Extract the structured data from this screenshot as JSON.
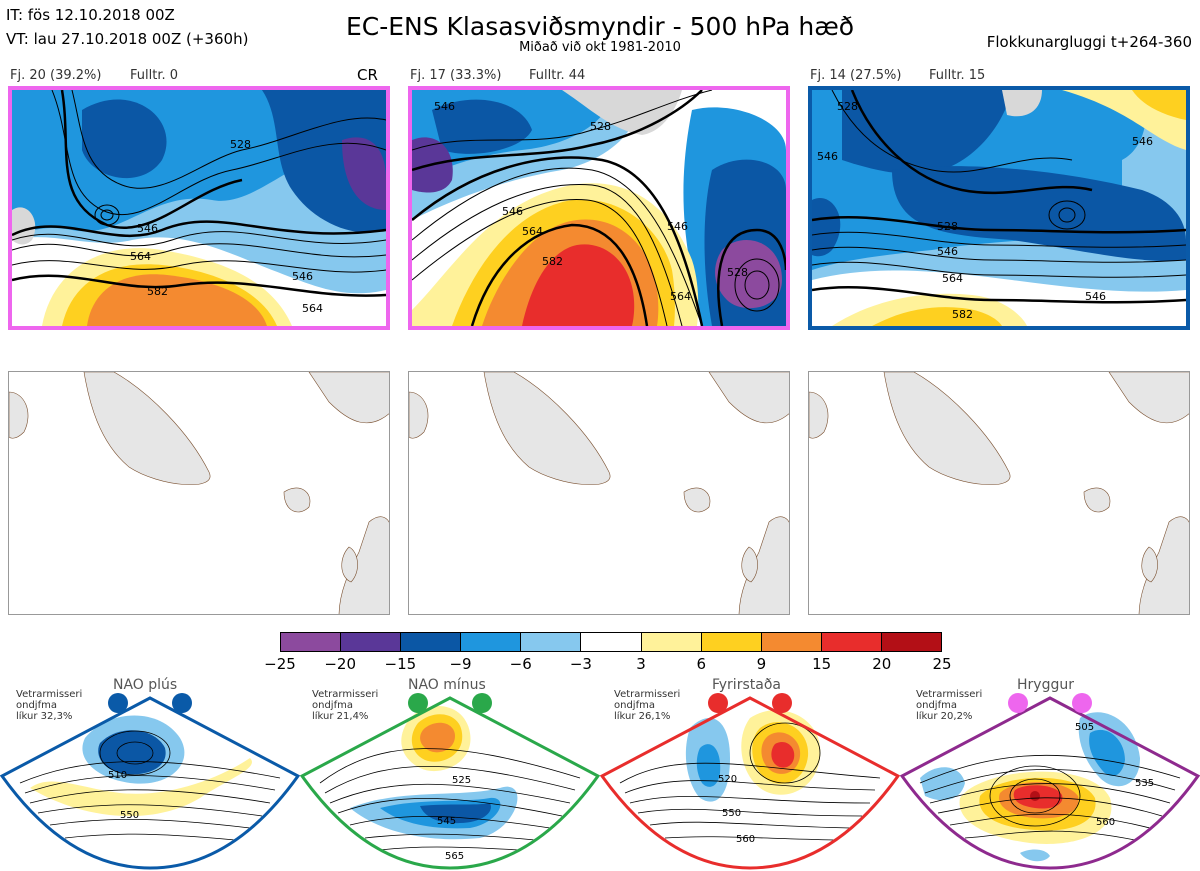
{
  "header": {
    "it_line": "IT: fös 12.10.2018 00Z",
    "vt_line": "VT: lau 27.10.2018 00Z  (+360h)",
    "title": "EC-ENS Klasasviðsmyndir - 500 hPa hæð",
    "subtitle": "Miðað við okt 1981-2010",
    "window_label": "Flokkunargluggi t+264-360"
  },
  "clusters": [
    {
      "label": "Fj. 20 (39.2%)",
      "fulltr": "Fulltr. 0",
      "tag": "CR",
      "frame_color": "#ee66ee",
      "contours": [
        "528",
        "546",
        "564",
        "582",
        "546",
        "564"
      ]
    },
    {
      "label": "Fj. 17 (33.3%)",
      "fulltr": "Fulltr. 44",
      "tag": "",
      "frame_color": "#ee66ee",
      "contours": [
        "528",
        "546",
        "564",
        "582",
        "546",
        "528",
        "564",
        "546"
      ]
    },
    {
      "label": "Fj. 14 (27.5%)",
      "fulltr": "Fulltr. 15",
      "tag": "",
      "frame_color": "#0a5aa8",
      "contours": [
        "528",
        "546",
        "528",
        "546",
        "564",
        "546",
        "582",
        "546"
      ]
    }
  ],
  "colorbar": {
    "colors": [
      "#8c4a9e",
      "#5a3798",
      "#0b57a5",
      "#1f96de",
      "#86c8ee",
      "#ffffff",
      "#fff29a",
      "#fed020",
      "#f48a30",
      "#e82d2c",
      "#b30f16"
    ],
    "ticks": [
      "−25",
      "−20",
      "−15",
      "−9",
      "−6",
      "−3",
      "3",
      "6",
      "9",
      "15",
      "20",
      "25"
    ]
  },
  "regimes": [
    {
      "name": "NAO plús",
      "info": [
        "Vetrarmisseri",
        "ondjfma",
        "líkur 32,3%"
      ],
      "color": "#0a5aa8",
      "dot_color": "#0a5aa8",
      "labels": [
        "510",
        "550"
      ]
    },
    {
      "name": "NAO mínus",
      "info": [
        "Vetrarmisseri",
        "ondjfma",
        "líkur 21,4%"
      ],
      "color": "#2aa84a",
      "dot_color": "#2aa84a",
      "labels": [
        "525",
        "545",
        "565"
      ]
    },
    {
      "name": "Fyrirstaða",
      "info": [
        "Vetrarmisseri",
        "ondjfma",
        "líkur 26,1%"
      ],
      "color": "#e82d2c",
      "dot_color": "#e82d2c",
      "labels": [
        "520",
        "550",
        "560"
      ]
    },
    {
      "name": "Hryggur",
      "info": [
        "Vetrarmisseri",
        "ondjfma",
        "líkur 20,2%"
      ],
      "color": "#8e2a8e",
      "dot_color": "#ee66ee",
      "labels": [
        "505",
        "535",
        "560"
      ]
    }
  ]
}
